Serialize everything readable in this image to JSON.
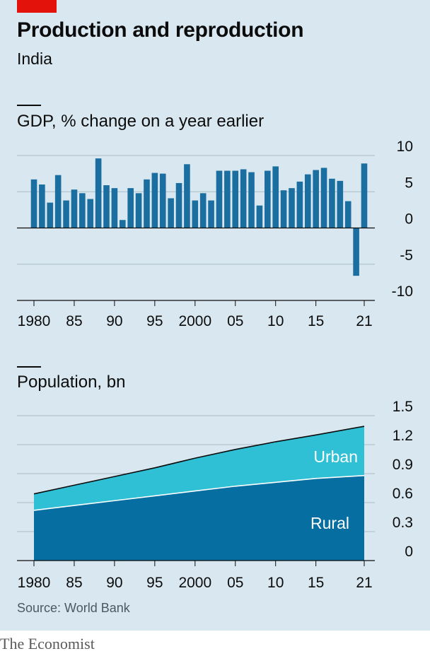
{
  "header": {
    "title": "Production and reproduction",
    "subtitle": "India"
  },
  "footer": {
    "source": "Source: World Bank",
    "brand": "The Economist"
  },
  "colors": {
    "background": "#d9e8f0",
    "bar": "#1b6ea0",
    "rural": "#066ea1",
    "urban": "#2fc0d5",
    "accent": "#e3120b"
  },
  "chart_data": [
    {
      "type": "bar",
      "title": "GDP, % change on a year earlier",
      "x": [
        1980,
        1981,
        1982,
        1983,
        1984,
        1985,
        1986,
        1987,
        1988,
        1989,
        1990,
        1991,
        1992,
        1993,
        1994,
        1995,
        1996,
        1997,
        1998,
        1999,
        2000,
        2001,
        2002,
        2003,
        2004,
        2005,
        2006,
        2007,
        2008,
        2009,
        2010,
        2011,
        2012,
        2013,
        2014,
        2015,
        2016,
        2017,
        2018,
        2019,
        2020,
        2021
      ],
      "values": [
        6.7,
        6.0,
        3.5,
        7.3,
        3.8,
        5.3,
        4.8,
        4.0,
        9.6,
        5.9,
        5.5,
        1.1,
        5.5,
        4.8,
        6.7,
        7.6,
        7.5,
        4.1,
        6.2,
        8.8,
        3.8,
        4.8,
        3.8,
        7.9,
        7.9,
        7.9,
        8.1,
        7.7,
        3.1,
        7.9,
        8.5,
        5.2,
        5.5,
        6.4,
        7.4,
        8.0,
        8.3,
        6.8,
        6.5,
        3.7,
        -6.6,
        8.9
      ],
      "ylim": [
        -10,
        10
      ],
      "yticks": [
        10,
        5,
        0,
        -5,
        -10
      ],
      "ytick_labels": [
        "10",
        "5",
        "0",
        "-5",
        "-10"
      ],
      "xticks": [
        1980,
        1985,
        1990,
        1995,
        2000,
        2005,
        2010,
        2015,
        2021
      ],
      "xtick_labels": [
        "1980",
        "85",
        "90",
        "95",
        "2000",
        "05",
        "10",
        "15",
        "21"
      ],
      "grid": true
    },
    {
      "type": "area",
      "title": "Population, bn",
      "x": [
        1980,
        1985,
        1990,
        1995,
        2000,
        2005,
        2010,
        2015,
        2021
      ],
      "series": [
        {
          "name": "Rural",
          "values": [
            0.52,
            0.57,
            0.62,
            0.67,
            0.72,
            0.77,
            0.81,
            0.85,
            0.88
          ]
        },
        {
          "name": "Urban",
          "values": [
            0.17,
            0.21,
            0.25,
            0.29,
            0.34,
            0.38,
            0.42,
            0.45,
            0.51
          ]
        }
      ],
      "stacked": true,
      "ylim": [
        0,
        1.5
      ],
      "yticks": [
        1.5,
        1.2,
        0.9,
        0.6,
        0.3,
        0
      ],
      "ytick_labels": [
        "1.5",
        "1.2",
        "0.9",
        "0.6",
        "0.3",
        "0"
      ],
      "xticks": [
        1980,
        1985,
        1990,
        1995,
        2000,
        2005,
        2010,
        2015,
        2021
      ],
      "xtick_labels": [
        "1980",
        "85",
        "90",
        "95",
        "2000",
        "05",
        "10",
        "15",
        "21"
      ],
      "grid": true
    }
  ]
}
